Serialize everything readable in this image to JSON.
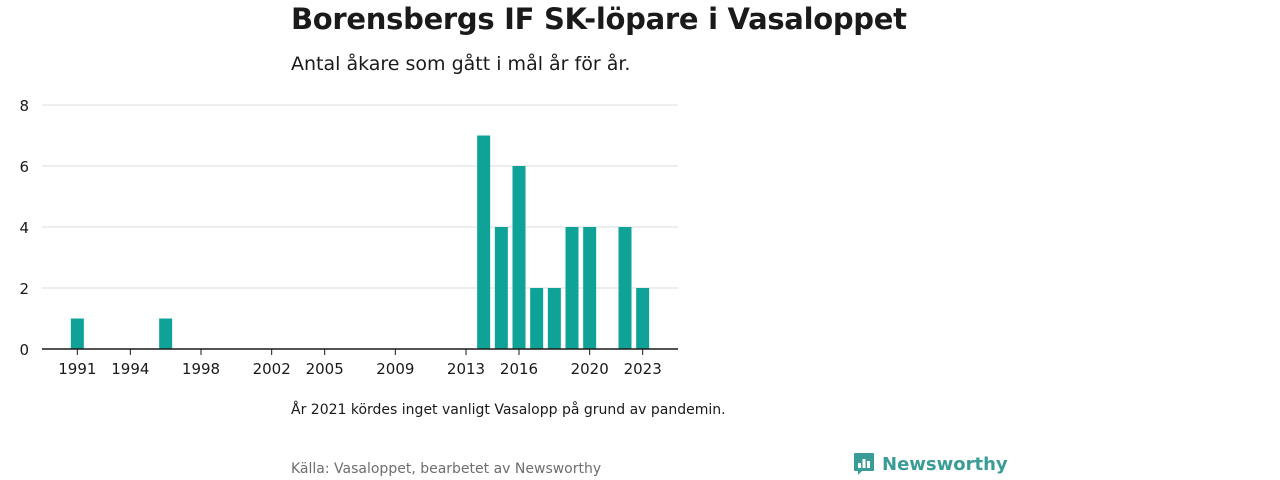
{
  "title": "Borensbergs IF SK-löpare i Vasaloppet",
  "subtitle": "Antal åkare som gått i mål år för år.",
  "note": "År 2021 kördes inget vanligt Vasalopp på grund av pandemin.",
  "source": "Källa: Vasaloppet, bearbetet av Newsworthy",
  "brand": "Newsworthy",
  "colors": {
    "bar": "#0fa398",
    "grid": "#dcdcdc",
    "axis": "#1a1a1a",
    "brand": "#3a9c96"
  },
  "chart_data": {
    "type": "bar",
    "x": [
      1991,
      1996,
      2014,
      2015,
      2016,
      2017,
      2018,
      2019,
      2020,
      2022,
      2023
    ],
    "values": [
      1,
      1,
      7,
      4,
      6,
      2,
      2,
      4,
      4,
      4,
      2
    ],
    "xlim": [
      1989,
      2025
    ],
    "ylim": [
      0,
      8
    ],
    "yticks": [
      0,
      2,
      4,
      6,
      8
    ],
    "xticks": [
      1991,
      1994,
      1998,
      2002,
      2005,
      2009,
      2013,
      2016,
      2020,
      2023
    ],
    "grid": true
  }
}
